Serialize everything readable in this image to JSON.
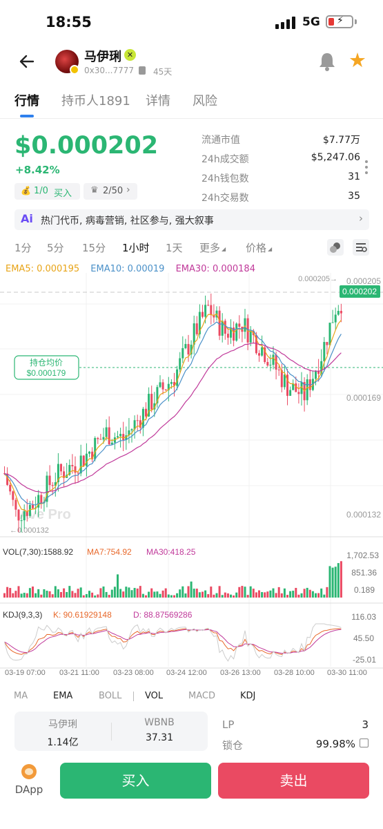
{
  "status_bar": {
    "time": "18:55",
    "network": "5G"
  },
  "header": {
    "token_name": "马伊琍",
    "address": "0x30...7777",
    "age": "45天"
  },
  "tabs": [
    {
      "label": "行情",
      "active": true
    },
    {
      "label": "持币人1891",
      "active": false
    },
    {
      "label": "详情",
      "active": false
    },
    {
      "label": "风险",
      "active": false
    }
  ],
  "summary": {
    "price": "$0.000202",
    "change": "+8.42%",
    "buy_count": "1/0",
    "buy_label": "买入",
    "rank": "2/50",
    "stats": [
      {
        "label": "流通市值",
        "value": "$7.77万"
      },
      {
        "label": "24h成交额",
        "value": "$5,247.06"
      },
      {
        "label": "24h钱包数",
        "value": "31"
      },
      {
        "label": "24h交易数",
        "value": "35"
      }
    ],
    "tags": "热门代币, 病毒营销, 社区参与, 强大叙事"
  },
  "timeframes": [
    {
      "label": "1分",
      "active": false
    },
    {
      "label": "5分",
      "active": false
    },
    {
      "label": "15分",
      "active": false
    },
    {
      "label": "1小时",
      "active": true
    },
    {
      "label": "1天",
      "active": false
    },
    {
      "label": "更多",
      "active": false,
      "dropdown": true
    },
    {
      "label": "价格",
      "active": false,
      "dropdown": true
    }
  ],
  "ema_legend": {
    "ema5": "EMA5: 0.000195",
    "ema10": "EMA10: 0.00019",
    "ema30": "EMA30: 0.000184"
  },
  "chart_data": {
    "type": "candlestick",
    "interval": "1小时",
    "watermark": "Ave Pro",
    "price_axis_labels": [
      "0.000205",
      "0.000169",
      "0.000132"
    ],
    "current_price_tag": "0.000202",
    "max_marker": "0.000205→",
    "min_marker": "←0.000132",
    "avg_hold_label": "持仓均价",
    "avg_hold_price": "$0.000179",
    "x_ticks": [
      "03-19 07:00",
      "03-21 11:00",
      "03-23 08:00",
      "03-24 12:00",
      "03-26 13:00",
      "03-28 10:00",
      "03-30 11:00"
    ],
    "colors": {
      "up": "#2bb673",
      "down": "#ea4a62",
      "ema5": "#e8a417",
      "ema10": "#4a90c8",
      "ema30": "#c0399a"
    },
    "volume": {
      "label": "VOL(7,30):1588.92",
      "ma7": "MA7:754.92",
      "ma30": "MA30:418.25",
      "axis_labels": [
        "1,702.53",
        "851.36",
        "0.189"
      ]
    },
    "kdj": {
      "label": "KDJ(9,3,3)",
      "k": "K: 90.61929148",
      "d": "D: 88.87569286",
      "axis_labels": [
        "116.03",
        "45.50",
        "-25.01"
      ]
    }
  },
  "indicator_tabs": [
    {
      "label": "MA",
      "on": false
    },
    {
      "label": "EMA",
      "on": true
    },
    {
      "label": "BOLL",
      "on": false
    },
    {
      "label": "VOL",
      "on": true
    },
    {
      "label": "MACD",
      "on": false
    },
    {
      "label": "KDJ",
      "on": true
    }
  ],
  "pool": {
    "token_a_name": "马伊琍",
    "token_a_amount": "1.14亿",
    "token_b_name": "WBNB",
    "token_b_amount": "37.31",
    "lp_label": "LP",
    "lp_value": "3",
    "lock_label": "锁仓",
    "lock_value": "99.98%"
  },
  "bottom": {
    "dapp_label": "DApp",
    "buy_label": "买入",
    "sell_label": "卖出"
  }
}
